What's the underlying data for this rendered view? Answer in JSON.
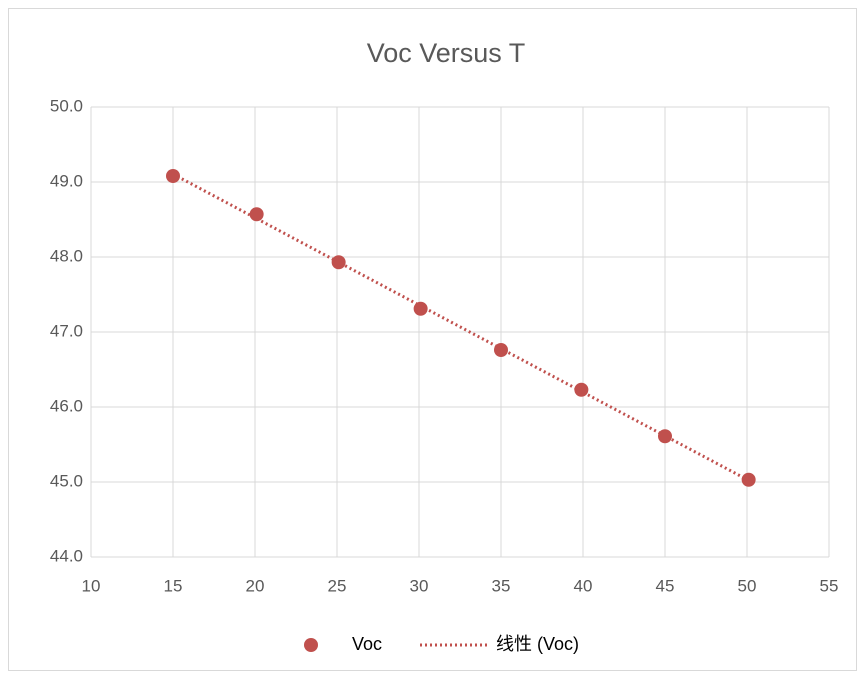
{
  "chart_data": {
    "type": "scatter",
    "title": "Voc Versus T",
    "series": [
      {
        "name": "Voc",
        "color": "#c0504d",
        "x": [
          15,
          20.1,
          25.1,
          30.1,
          35,
          39.9,
          45,
          50.1
        ],
        "values": [
          49.08,
          48.57,
          47.93,
          47.31,
          46.76,
          46.23,
          45.61,
          45.03
        ]
      }
    ],
    "trendline": {
      "name": "线性 (Voc)",
      "color": "#c0504d",
      "style": "dotted"
    },
    "xlim": [
      10,
      55
    ],
    "xticks": [
      10,
      15,
      20,
      25,
      30,
      35,
      40,
      45,
      50,
      55
    ],
    "ylim": [
      44,
      50
    ],
    "yticks": [
      {
        "value": 44,
        "label": "44.0"
      },
      {
        "value": 45,
        "label": "45.0"
      },
      {
        "value": 46,
        "label": "46.0"
      },
      {
        "value": 47,
        "label": "47.0"
      },
      {
        "value": 48,
        "label": "48.0"
      },
      {
        "value": 49,
        "label": "49.0"
      },
      {
        "value": 50,
        "label": "50.0"
      }
    ],
    "grid": true,
    "legend": "bottom"
  }
}
